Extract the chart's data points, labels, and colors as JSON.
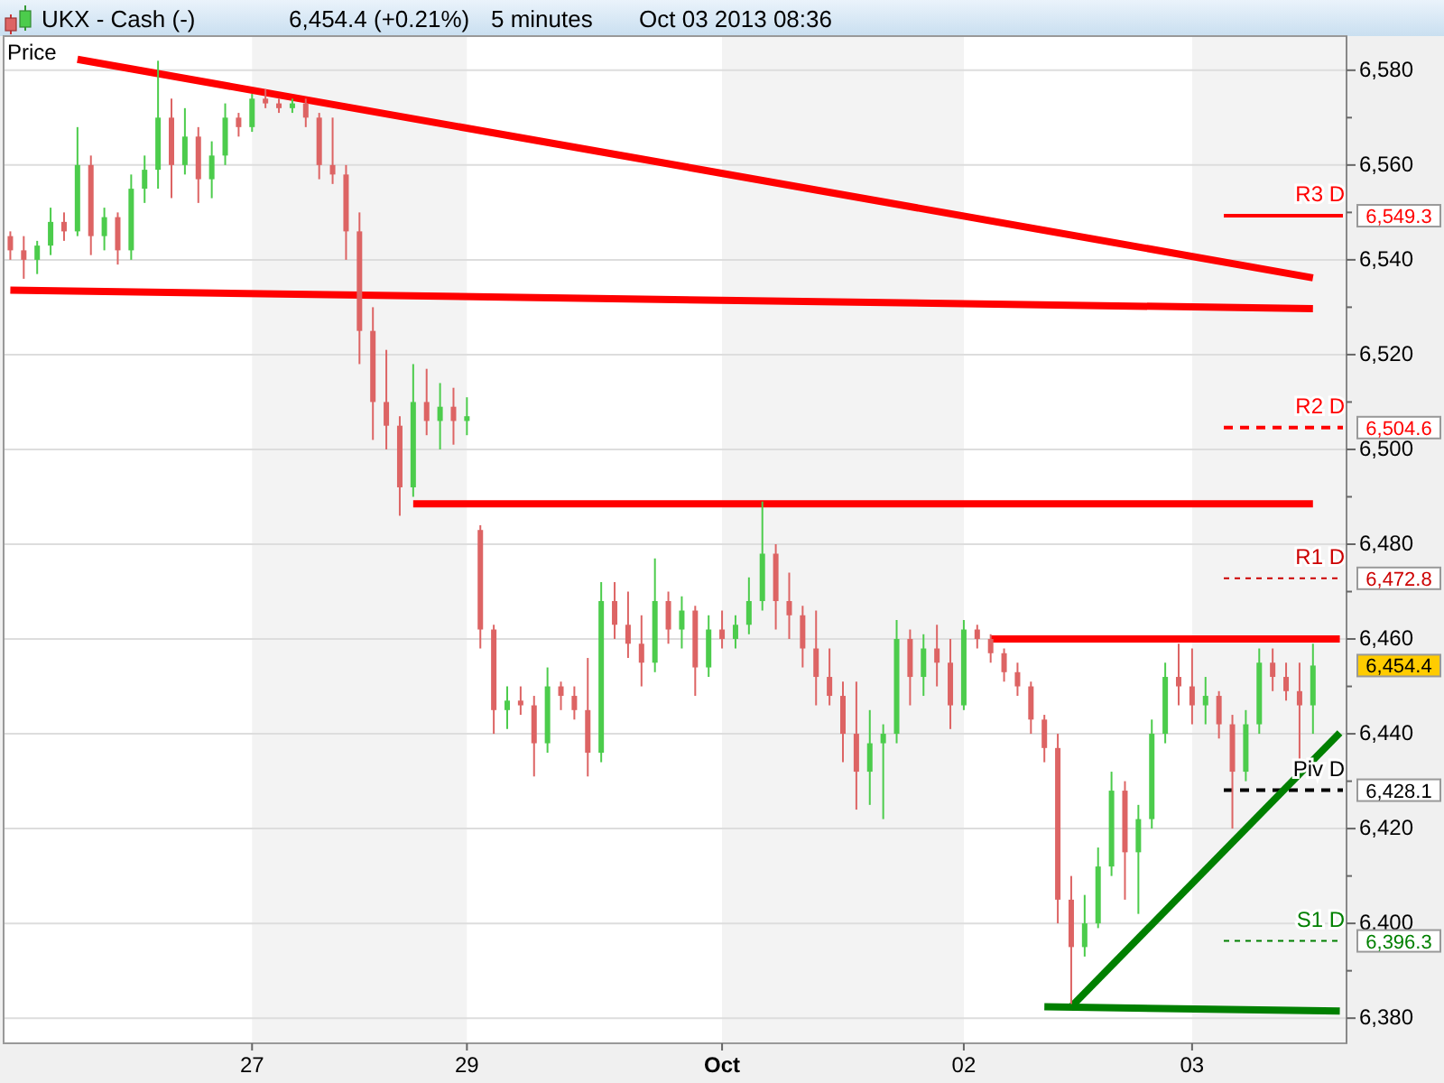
{
  "chart_data": {
    "type": "candlestick",
    "title": "UKX - Cash (-)",
    "subtitle": "6,454.4 (+0.21%)",
    "ylabel": "Price",
    "annotations": [
      "5 minutes",
      "Oct 03 2013 08:36",
      "6,549.3",
      "6,504.6",
      "6,472.8",
      "6,454.4",
      "6,428.1",
      "6,396.3"
    ],
    "categories": [
      null,
      null,
      null,
      null,
      null,
      null,
      null,
      null,
      null,
      null,
      null,
      null,
      null,
      null,
      null,
      null,
      null,
      null,
      "27",
      null,
      null,
      null,
      null,
      null,
      null,
      null,
      null,
      null,
      null,
      null,
      null,
      null,
      null,
      null,
      "29",
      null,
      null,
      null,
      null,
      null,
      null,
      null,
      null,
      null,
      null,
      null,
      null,
      null,
      null,
      null,
      null,
      null,
      null,
      "Oct",
      null,
      null,
      null,
      null,
      null,
      null,
      null,
      null,
      null,
      null,
      null,
      null,
      null,
      null,
      null,
      null,
      null,
      "02",
      null,
      null,
      null,
      null,
      null,
      null,
      null,
      null,
      null,
      null,
      null,
      null,
      null,
      null,
      null,
      null,
      "03",
      null,
      null,
      null,
      null,
      null,
      null,
      null,
      null,
      null,
      null,
      null
    ],
    "ylim": [
      6374.7,
      6587.2
    ],
    "yticks": [
      {
        "value": 6380,
        "label": "6,380"
      },
      {
        "value": 6390,
        "label": null
      },
      {
        "value": 6400,
        "label": "6,400"
      },
      {
        "value": 6410,
        "label": null
      },
      {
        "value": 6420,
        "label": "6,420"
      },
      {
        "value": 6430,
        "label": null
      },
      {
        "value": 6440,
        "label": "6,440"
      },
      {
        "value": 6450,
        "label": null
      },
      {
        "value": 6460,
        "label": "6,460"
      },
      {
        "value": 6470,
        "label": null
      },
      {
        "value": 6480,
        "label": "6,480"
      },
      {
        "value": 6490,
        "label": null
      },
      {
        "value": 6500,
        "label": "6,500"
      },
      {
        "value": 6510,
        "label": null
      },
      {
        "value": 6520,
        "label": "6,520"
      },
      {
        "value": 6530,
        "label": null
      },
      {
        "value": 6540,
        "label": "6,540"
      },
      {
        "value": 6550,
        "label": null
      },
      {
        "value": 6560,
        "label": "6,560"
      },
      {
        "value": 6570,
        "label": null
      },
      {
        "value": 6580,
        "label": "6,580"
      }
    ],
    "grid": "y",
    "ohlc": [
      [
        6545,
        6546,
        6540,
        6542
      ],
      [
        6542,
        6545,
        6536,
        6540
      ],
      [
        6540,
        6544,
        6537,
        6543
      ],
      [
        6543,
        6551,
        6541,
        6548
      ],
      [
        6548,
        6550,
        6544,
        6546
      ],
      [
        6546,
        6568,
        6545,
        6560
      ],
      [
        6560,
        6562,
        6541,
        6545
      ],
      [
        6545,
        6551,
        6542,
        6549
      ],
      [
        6549,
        6550,
        6539,
        6542
      ],
      [
        6542,
        6558,
        6540,
        6555
      ],
      [
        6555,
        6562,
        6552,
        6559
      ],
      [
        6559,
        6582,
        6555,
        6570
      ],
      [
        6570,
        6574,
        6553,
        6560
      ],
      [
        6560,
        6572,
        6558,
        6566
      ],
      [
        6566,
        6568,
        6552,
        6557
      ],
      [
        6557,
        6565,
        6553,
        6562
      ],
      [
        6562,
        6573,
        6560,
        6570
      ],
      [
        6570,
        6571,
        6566,
        6568
      ],
      [
        6568,
        6575,
        6567,
        6574
      ],
      [
        6574,
        6576,
        6572,
        6573
      ],
      [
        6573,
        6574,
        6571,
        6572
      ],
      [
        6572,
        6574,
        6571,
        6573
      ],
      [
        6573,
        6574,
        6568,
        6570
      ],
      [
        6570,
        6571,
        6557,
        6560
      ],
      [
        6560,
        6570,
        6556,
        6558
      ],
      [
        6558,
        6560,
        6540,
        6546
      ],
      [
        6546,
        6550,
        6518,
        6525
      ],
      [
        6525,
        6530,
        6502,
        6510
      ],
      [
        6510,
        6521,
        6500,
        6505
      ],
      [
        6505,
        6507,
        6486,
        6492
      ],
      [
        6492,
        6518,
        6490,
        6510
      ],
      [
        6510,
        6517,
        6503,
        6506
      ],
      [
        6506,
        6514,
        6500,
        6509
      ],
      [
        6509,
        6513,
        6501,
        6506
      ],
      [
        6506,
        6511,
        6503,
        6507
      ],
      [
        6483,
        6484,
        6458,
        6462
      ],
      [
        6462,
        6463,
        6440,
        6445
      ],
      [
        6445,
        6450,
        6441,
        6447
      ],
      [
        6447,
        6450,
        6444,
        6446
      ],
      [
        6446,
        6448,
        6431,
        6438
      ],
      [
        6438,
        6454,
        6436,
        6450
      ],
      [
        6450,
        6451,
        6445,
        6448
      ],
      [
        6448,
        6450,
        6443,
        6445
      ],
      [
        6445,
        6456,
        6431,
        6436
      ],
      [
        6436,
        6472,
        6434,
        6468
      ],
      [
        6468,
        6472,
        6460,
        6463
      ],
      [
        6463,
        6470,
        6456,
        6459
      ],
      [
        6459,
        6465,
        6450,
        6455
      ],
      [
        6455,
        6477,
        6453,
        6468
      ],
      [
        6468,
        6470,
        6459,
        6462
      ],
      [
        6462,
        6469,
        6458,
        6466
      ],
      [
        6466,
        6467,
        6448,
        6454
      ],
      [
        6454,
        6465,
        6452,
        6462
      ],
      [
        6462,
        6466,
        6458,
        6460
      ],
      [
        6460,
        6465,
        6458,
        6463
      ],
      [
        6463,
        6473,
        6461,
        6468
      ],
      [
        6468,
        6489,
        6466,
        6478
      ],
      [
        6478,
        6480,
        6462,
        6468
      ],
      [
        6468,
        6474,
        6460,
        6465
      ],
      [
        6465,
        6467,
        6454,
        6458
      ],
      [
        6458,
        6466,
        6446,
        6452
      ],
      [
        6452,
        6458,
        6446,
        6448
      ],
      [
        6448,
        6451,
        6434,
        6440
      ],
      [
        6440,
        6451,
        6424,
        6432
      ],
      [
        6432,
        6445,
        6425,
        6438
      ],
      [
        6438,
        6442,
        6422,
        6440
      ],
      [
        6440,
        6464,
        6438,
        6460
      ],
      [
        6460,
        6462,
        6446,
        6452
      ],
      [
        6452,
        6461,
        6448,
        6458
      ],
      [
        6458,
        6463,
        6450,
        6455
      ],
      [
        6455,
        6460,
        6441,
        6446
      ],
      [
        6446,
        6464,
        6445,
        6462
      ],
      [
        6462,
        6463,
        6458,
        6460
      ],
      [
        6460,
        6461,
        6455,
        6457
      ],
      [
        6457,
        6458,
        6451,
        6453
      ],
      [
        6453,
        6455,
        6448,
        6450
      ],
      [
        6450,
        6451,
        6440,
        6443
      ],
      [
        6443,
        6444,
        6434,
        6437
      ],
      [
        6437,
        6440,
        6400,
        6405
      ],
      [
        6405,
        6410,
        6383,
        6395
      ],
      [
        6395,
        6406,
        6393,
        6400
      ],
      [
        6400,
        6416,
        6399,
        6412
      ],
      [
        6412,
        6432,
        6410,
        6428
      ],
      [
        6428,
        6430,
        6405,
        6415
      ],
      [
        6415,
        6425,
        6402,
        6422
      ],
      [
        6422,
        6443,
        6420,
        6440
      ],
      [
        6440,
        6455,
        6438,
        6452
      ],
      [
        6452,
        6459,
        6446,
        6450
      ],
      [
        6450,
        6458,
        6442,
        6446
      ],
      [
        6446,
        6452,
        6442,
        6448
      ],
      [
        6448,
        6449,
        6439,
        6442
      ],
      [
        6442,
        6444,
        6420,
        6432
      ],
      [
        6432,
        6445,
        6430,
        6442
      ],
      [
        6442,
        6458,
        6440,
        6455
      ],
      [
        6455,
        6458,
        6449,
        6452
      ],
      [
        6452,
        6455,
        6447,
        6449
      ],
      [
        6449,
        6455,
        6434,
        6446
      ],
      [
        6446,
        6459,
        6440,
        6454.4
      ],
      null,
      null
    ],
    "series": [
      {
        "type": "line",
        "color": "#ff0000",
        "values": [
          null,
          null,
          null,
          null,
          null,
          6582.3,
          null,
          null,
          null,
          null,
          null,
          null,
          null,
          null,
          null,
          null,
          null,
          null,
          null,
          null,
          null,
          null,
          null,
          null,
          null,
          null,
          null,
          null,
          null,
          null,
          null,
          null,
          null,
          null,
          null,
          null,
          null,
          null,
          null,
          null,
          null,
          null,
          null,
          null,
          null,
          null,
          null,
          null,
          null,
          null,
          null,
          null,
          null,
          null,
          null,
          null,
          null,
          null,
          null,
          null,
          null,
          null,
          null,
          null,
          null,
          null,
          null,
          null,
          null,
          null,
          null,
          null,
          null,
          null,
          null,
          null,
          null,
          null,
          null,
          null,
          null,
          null,
          null,
          null,
          null,
          null,
          null,
          null,
          null,
          null,
          null,
          null,
          null,
          null,
          null,
          null,
          null,
          6536.2,
          null,
          null
        ]
      },
      {
        "type": "line",
        "color": "#ff0000",
        "values": [
          6533.6,
          null,
          null,
          null,
          null,
          null,
          null,
          null,
          null,
          null,
          null,
          null,
          null,
          null,
          null,
          null,
          null,
          null,
          null,
          null,
          null,
          null,
          null,
          null,
          null,
          null,
          null,
          null,
          null,
          null,
          null,
          null,
          null,
          null,
          null,
          null,
          null,
          null,
          null,
          null,
          null,
          null,
          null,
          null,
          null,
          null,
          null,
          null,
          null,
          null,
          null,
          null,
          null,
          null,
          null,
          null,
          null,
          null,
          null,
          null,
          null,
          null,
          null,
          null,
          null,
          null,
          null,
          null,
          null,
          null,
          null,
          null,
          null,
          null,
          null,
          null,
          null,
          null,
          null,
          null,
          null,
          null,
          null,
          null,
          null,
          null,
          null,
          null,
          null,
          null,
          null,
          null,
          null,
          null,
          null,
          null,
          null,
          6529.7,
          null,
          null
        ]
      },
      {
        "type": "line",
        "color": "#ff0000",
        "values": [
          null,
          null,
          null,
          null,
          null,
          null,
          null,
          null,
          null,
          null,
          null,
          null,
          null,
          null,
          null,
          null,
          null,
          null,
          null,
          null,
          null,
          null,
          null,
          null,
          null,
          null,
          null,
          null,
          null,
          null,
          6488.5,
          null,
          null,
          null,
          null,
          null,
          null,
          null,
          null,
          null,
          null,
          null,
          null,
          null,
          null,
          null,
          null,
          null,
          null,
          null,
          null,
          null,
          null,
          null,
          null,
          null,
          null,
          null,
          null,
          null,
          null,
          null,
          null,
          null,
          null,
          null,
          null,
          null,
          null,
          null,
          null,
          null,
          null,
          null,
          null,
          null,
          null,
          null,
          null,
          null,
          null,
          null,
          null,
          null,
          null,
          null,
          null,
          null,
          null,
          null,
          null,
          null,
          null,
          null,
          null,
          null,
          null,
          6488.5,
          null,
          null
        ]
      },
      {
        "type": "line",
        "color": "#ff0000",
        "values": [
          null,
          null,
          null,
          null,
          null,
          null,
          null,
          null,
          null,
          null,
          null,
          null,
          null,
          null,
          null,
          null,
          null,
          null,
          null,
          null,
          null,
          null,
          null,
          null,
          null,
          null,
          null,
          null,
          null,
          null,
          null,
          null,
          null,
          null,
          null,
          null,
          null,
          null,
          null,
          null,
          null,
          null,
          null,
          null,
          null,
          null,
          null,
          null,
          null,
          null,
          null,
          null,
          null,
          null,
          null,
          null,
          null,
          null,
          null,
          null,
          null,
          null,
          null,
          null,
          null,
          null,
          null,
          null,
          null,
          null,
          null,
          null,
          null,
          6460,
          null,
          null,
          null,
          null,
          null,
          null,
          null,
          null,
          null,
          null,
          null,
          null,
          null,
          null,
          null,
          null,
          null,
          null,
          null,
          null,
          null,
          null,
          null,
          null,
          null,
          6460
        ]
      },
      {
        "type": "line",
        "color": "#008000",
        "values": [
          null,
          null,
          null,
          null,
          null,
          null,
          null,
          null,
          null,
          null,
          null,
          null,
          null,
          null,
          null,
          null,
          null,
          null,
          null,
          null,
          null,
          null,
          null,
          null,
          null,
          null,
          null,
          null,
          null,
          null,
          null,
          null,
          null,
          null,
          null,
          null,
          null,
          null,
          null,
          null,
          null,
          null,
          null,
          null,
          null,
          null,
          null,
          null,
          null,
          null,
          null,
          null,
          null,
          null,
          null,
          null,
          null,
          null,
          null,
          null,
          null,
          null,
          null,
          null,
          null,
          null,
          null,
          null,
          null,
          null,
          null,
          null,
          null,
          null,
          null,
          null,
          null,
          null,
          null,
          6382.4,
          null,
          null,
          null,
          null,
          null,
          null,
          null,
          null,
          null,
          null,
          null,
          null,
          null,
          null,
          null,
          null,
          null,
          null,
          null,
          6440.2
        ]
      },
      {
        "type": "line",
        "color": "#008000",
        "values": [
          null,
          null,
          null,
          null,
          null,
          null,
          null,
          null,
          null,
          null,
          null,
          null,
          null,
          null,
          null,
          null,
          null,
          null,
          null,
          null,
          null,
          null,
          null,
          null,
          null,
          null,
          null,
          null,
          null,
          null,
          null,
          null,
          null,
          null,
          null,
          null,
          null,
          null,
          null,
          null,
          null,
          null,
          null,
          null,
          null,
          null,
          null,
          null,
          null,
          null,
          null,
          null,
          null,
          null,
          null,
          null,
          null,
          null,
          null,
          null,
          null,
          null,
          null,
          null,
          null,
          null,
          null,
          null,
          null,
          null,
          null,
          null,
          null,
          null,
          null,
          null,
          null,
          6382.4,
          null,
          null,
          null,
          null,
          null,
          null,
          null,
          null,
          null,
          null,
          null,
          null,
          null,
          null,
          null,
          null,
          null,
          null,
          null,
          null,
          null,
          6381.5
        ]
      }
    ],
    "ref_lines": [
      {
        "axis": "y",
        "value": 6549.3,
        "label": "R3 D",
        "color": "#ff0000",
        "line_style": "solid"
      },
      {
        "axis": "y",
        "value": 6504.6,
        "label": "R2 D",
        "color": "#ff0000",
        "line_style": "dashed"
      },
      {
        "axis": "y",
        "value": 6472.8,
        "label": "R1 D",
        "color": "#cc0000",
        "line_style": "dotted"
      },
      {
        "axis": "y",
        "value": 6428.1,
        "label": "Piv D",
        "color": "#000000",
        "line_style": "dashed"
      },
      {
        "axis": "y",
        "value": 6396.3,
        "label": "S1 D",
        "color": "#008000",
        "line_style": "dotted"
      }
    ]
  }
}
